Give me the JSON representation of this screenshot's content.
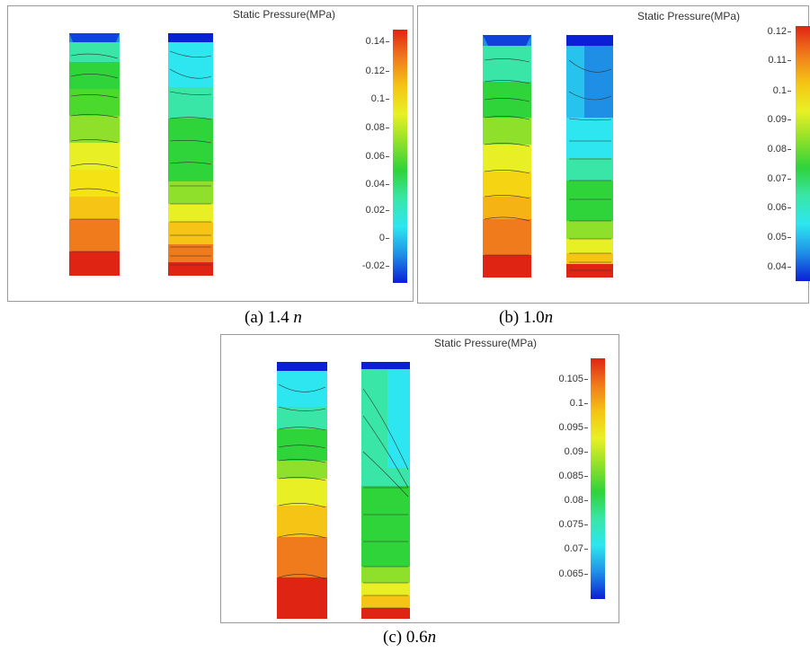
{
  "panels": [
    {
      "id": "a",
      "title": "Static Pressure(MPa)",
      "ticks": [
        "0.14",
        "0.12",
        "0.1",
        "0.08",
        "0.06",
        "0.04",
        "0.02",
        "0",
        "-0.02"
      ],
      "caption_prefix": "(a) 1.4 ",
      "caption_var": "n"
    },
    {
      "id": "b",
      "title": "Static Pressure(MPa)",
      "ticks": [
        "0.12",
        "0.11",
        "0.1",
        "0.09",
        "0.08",
        "0.07",
        "0.06",
        "0.05",
        "0.04"
      ],
      "caption_prefix": "(b) 1.0",
      "caption_var": "n"
    },
    {
      "id": "c",
      "title": "Static Pressure(MPa)",
      "ticks": [
        "0.105",
        "0.1",
        "0.095",
        "0.09",
        "0.085",
        "0.08",
        "0.075",
        "0.07",
        "0.065"
      ],
      "caption_prefix": "(c) 0.6",
      "caption_var": "n"
    }
  ],
  "colors": {
    "colormap": [
      "#0a1fd6",
      "#1f8fe6",
      "#2de6f0",
      "#39e6a8",
      "#2fd33a",
      "#8fe02a",
      "#e8f025",
      "#f5c414",
      "#f07b1c",
      "#e02414"
    ]
  }
}
